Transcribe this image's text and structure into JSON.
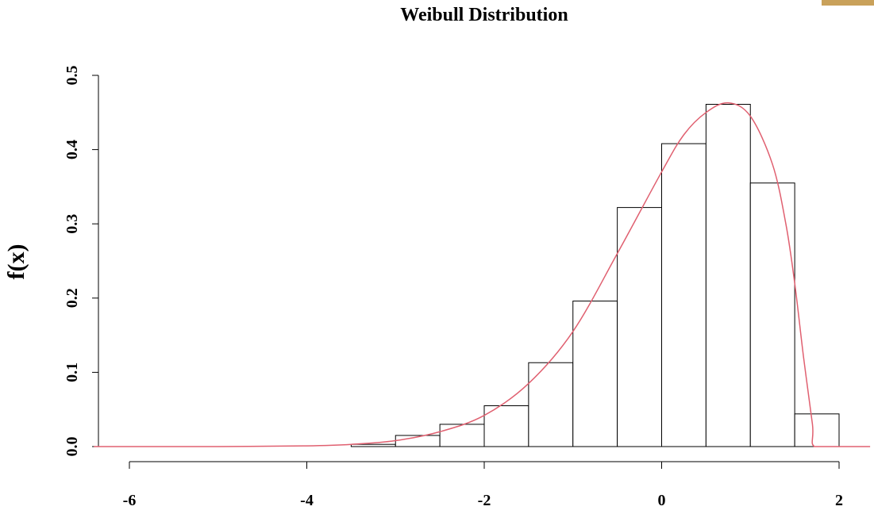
{
  "chart_data": {
    "type": "bar",
    "title": "Weibull Distribution",
    "xlabel": "",
    "ylabel": "f(x)",
    "xlim": [
      -6,
      2
    ],
    "ylim": [
      0,
      0.5
    ],
    "x_ticks": [
      "-6",
      "-4",
      "-2",
      "0",
      "2"
    ],
    "y_ticks": [
      "0.0",
      "0.1",
      "0.2",
      "0.3",
      "0.4",
      "0.5"
    ],
    "histogram": {
      "bin_width": 0.5,
      "bins": [
        {
          "x0": -3.5,
          "x1": -3.0,
          "density": 0.003
        },
        {
          "x0": -3.0,
          "x1": -2.5,
          "density": 0.015
        },
        {
          "x0": -2.5,
          "x1": -2.0,
          "density": 0.03
        },
        {
          "x0": -2.0,
          "x1": -1.5,
          "density": 0.055
        },
        {
          "x0": -1.5,
          "x1": -1.0,
          "density": 0.113
        },
        {
          "x0": -1.0,
          "x1": -0.5,
          "density": 0.196
        },
        {
          "x0": -0.5,
          "x1": 0.0,
          "density": 0.322
        },
        {
          "x0": 0.0,
          "x1": 0.5,
          "density": 0.408
        },
        {
          "x0": 0.5,
          "x1": 1.0,
          "density": 0.461
        },
        {
          "x0": 1.0,
          "x1": 1.5,
          "density": 0.355
        },
        {
          "x0": 1.5,
          "x1": 2.0,
          "density": 0.044
        }
      ]
    },
    "density_curve": {
      "color": "#e06070",
      "points": [
        [
          -6.4,
          0.0
        ],
        [
          -6.0,
          0.0
        ],
        [
          -5.0,
          0.0
        ],
        [
          -4.0,
          0.001
        ],
        [
          -3.5,
          0.003
        ],
        [
          -3.0,
          0.008
        ],
        [
          -2.5,
          0.02
        ],
        [
          -2.0,
          0.042
        ],
        [
          -1.5,
          0.085
        ],
        [
          -1.0,
          0.155
        ],
        [
          -0.5,
          0.26
        ],
        [
          0.0,
          0.37
        ],
        [
          0.25,
          0.42
        ],
        [
          0.5,
          0.45
        ],
        [
          0.75,
          0.463
        ],
        [
          1.0,
          0.445
        ],
        [
          1.25,
          0.38
        ],
        [
          1.4,
          0.3
        ],
        [
          1.5,
          0.22
        ],
        [
          1.6,
          0.12
        ],
        [
          1.7,
          0.03
        ],
        [
          1.72,
          0.0
        ],
        [
          2.0,
          0.0
        ],
        [
          2.35,
          0.0
        ]
      ]
    }
  }
}
